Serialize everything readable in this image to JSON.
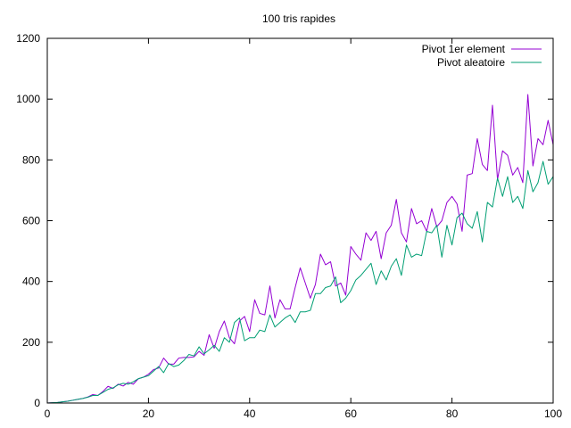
{
  "chart_data": {
    "type": "line",
    "title": "100 tris rapides",
    "xlabel": "",
    "ylabel": "",
    "xlim": [
      0,
      100
    ],
    "ylim": [
      0,
      1200
    ],
    "xticks": [
      "0",
      "20",
      "40",
      "60",
      "80",
      "100"
    ],
    "yticks": [
      "0",
      "200",
      "400",
      "600",
      "800",
      "1000",
      "1200"
    ],
    "grid": false,
    "legend_position": "top-right",
    "series": [
      {
        "name": "Pivot 1er element",
        "color": "#9400d3",
        "x": [
          0,
          1,
          2,
          3,
          4,
          5,
          6,
          7,
          8,
          9,
          10,
          11,
          12,
          13,
          14,
          15,
          16,
          17,
          18,
          19,
          20,
          21,
          22,
          23,
          24,
          25,
          26,
          27,
          28,
          29,
          30,
          31,
          32,
          33,
          34,
          35,
          36,
          37,
          38,
          39,
          40,
          41,
          42,
          43,
          44,
          45,
          46,
          47,
          48,
          49,
          50,
          51,
          52,
          53,
          54,
          55,
          56,
          57,
          58,
          59,
          60,
          61,
          62,
          63,
          64,
          65,
          66,
          67,
          68,
          69,
          70,
          71,
          72,
          73,
          74,
          75,
          76,
          77,
          78,
          79,
          80,
          81,
          82,
          83,
          84,
          85,
          86,
          87,
          88,
          89,
          90,
          91,
          92,
          93,
          94,
          95,
          96,
          97,
          98,
          99,
          100
        ],
        "y": [
          0,
          1,
          2,
          4,
          6,
          9,
          12,
          15,
          20,
          28,
          25,
          38,
          55,
          48,
          62,
          56,
          68,
          62,
          80,
          85,
          95,
          110,
          115,
          148,
          128,
          128,
          148,
          150,
          150,
          152,
          170,
          157,
          225,
          180,
          235,
          270,
          215,
          195,
          270,
          285,
          235,
          340,
          295,
          290,
          385,
          280,
          340,
          310,
          310,
          380,
          445,
          395,
          345,
          390,
          490,
          455,
          465,
          385,
          395,
          355,
          515,
          490,
          470,
          560,
          535,
          565,
          475,
          560,
          585,
          670,
          560,
          530,
          640,
          590,
          600,
          565,
          640,
          580,
          600,
          660,
          680,
          655,
          565,
          750,
          755,
          870,
          785,
          765,
          980,
          735,
          830,
          815,
          750,
          775,
          725,
          1015,
          780,
          870,
          850,
          930,
          850
        ]
      },
      {
        "name": "Pivot aleatoire",
        "color": "#009e73",
        "x": [
          0,
          1,
          2,
          3,
          4,
          5,
          6,
          7,
          8,
          9,
          10,
          11,
          12,
          13,
          14,
          15,
          16,
          17,
          18,
          19,
          20,
          21,
          22,
          23,
          24,
          25,
          26,
          27,
          28,
          29,
          30,
          31,
          32,
          33,
          34,
          35,
          36,
          37,
          38,
          39,
          40,
          41,
          42,
          43,
          44,
          45,
          46,
          47,
          48,
          49,
          50,
          51,
          52,
          53,
          54,
          55,
          56,
          57,
          58,
          59,
          60,
          61,
          62,
          63,
          64,
          65,
          66,
          67,
          68,
          69,
          70,
          71,
          72,
          73,
          74,
          75,
          76,
          77,
          78,
          79,
          80,
          81,
          82,
          83,
          84,
          85,
          86,
          87,
          88,
          89,
          90,
          91,
          92,
          93,
          94,
          95,
          96,
          97,
          98,
          99,
          100
        ],
        "y": [
          0,
          1,
          2,
          4,
          6,
          9,
          12,
          15,
          19,
          25,
          25,
          35,
          45,
          50,
          60,
          65,
          62,
          70,
          80,
          85,
          90,
          105,
          120,
          100,
          130,
          120,
          125,
          140,
          160,
          155,
          185,
          162,
          175,
          190,
          170,
          215,
          200,
          265,
          280,
          205,
          215,
          215,
          240,
          235,
          290,
          250,
          265,
          280,
          290,
          265,
          300,
          300,
          305,
          360,
          360,
          380,
          385,
          415,
          330,
          345,
          370,
          405,
          420,
          440,
          460,
          390,
          435,
          405,
          450,
          475,
          420,
          520,
          480,
          490,
          485,
          565,
          560,
          585,
          480,
          585,
          520,
          610,
          625,
          590,
          575,
          630,
          530,
          660,
          645,
          740,
          680,
          745,
          660,
          680,
          640,
          765,
          695,
          725,
          795,
          720,
          745
        ]
      }
    ]
  }
}
